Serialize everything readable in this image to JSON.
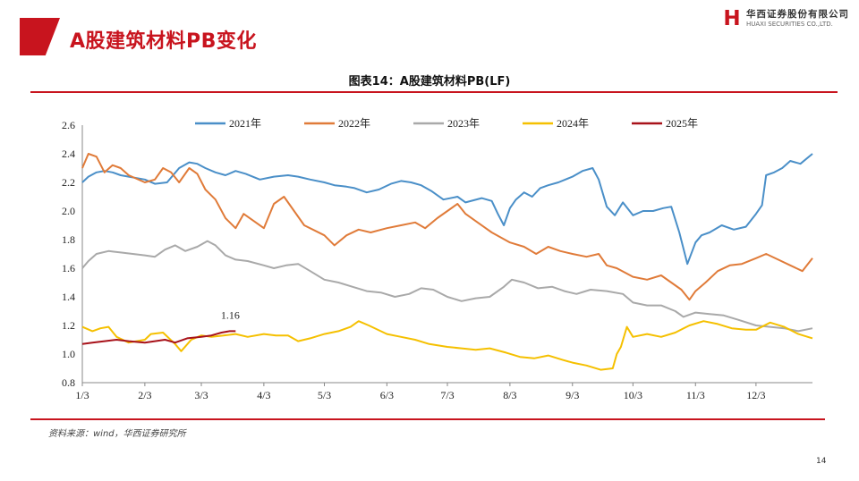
{
  "header": {
    "title": "A股建筑材料PB变化",
    "logo_cn": "华西证券股份有限公司",
    "logo_en": "HUAXI SECURITIES CO.,LTD."
  },
  "figure_title": "图表14：A股建筑材料PB(LF)",
  "source": "资料来源：wind，华西证券研究所",
  "page_number": "14",
  "colors": {
    "brand_red": "#c8141e",
    "s2021": "#4a8fc8",
    "s2022": "#e07b39",
    "s2023": "#a9a9a9",
    "s2024": "#f5c000",
    "s2025": "#a8121a"
  },
  "chart_data": {
    "type": "line",
    "title": "图表14：A股建筑材料PB(LF)",
    "xlabel": "",
    "ylabel": "",
    "ylim": [
      0.8,
      2.6
    ],
    "yticks": [
      "2.6",
      "2.4",
      "2.2",
      "2.0",
      "1.8",
      "1.6",
      "1.4",
      "1.2",
      "1.0",
      "0.8"
    ],
    "xticks": [
      "1/3",
      "2/3",
      "3/3",
      "4/3",
      "5/3",
      "6/3",
      "7/3",
      "8/3",
      "9/3",
      "10/3",
      "11/3",
      "12/3"
    ],
    "grid": false,
    "legend": "top",
    "annotation": {
      "text": "1.16",
      "series": "2025年",
      "x": "3/20",
      "y": 1.16
    },
    "series": [
      {
        "name": "2021年",
        "color": "#4a8fc8",
        "points": [
          [
            "1/3",
            2.2
          ],
          [
            "1/6",
            2.24
          ],
          [
            "1/10",
            2.27
          ],
          [
            "1/14",
            2.28
          ],
          [
            "1/18",
            2.27
          ],
          [
            "1/22",
            2.25
          ],
          [
            "1/26",
            2.24
          ],
          [
            "2/3",
            2.22
          ],
          [
            "2/8",
            2.19
          ],
          [
            "2/14",
            2.2
          ],
          [
            "2/20",
            2.3
          ],
          [
            "2/25",
            2.34
          ],
          [
            "3/1",
            2.33
          ],
          [
            "3/5",
            2.3
          ],
          [
            "3/10",
            2.27
          ],
          [
            "3/15",
            2.25
          ],
          [
            "3/20",
            2.28
          ],
          [
            "3/25",
            2.26
          ],
          [
            "4/1",
            2.22
          ],
          [
            "4/8",
            2.24
          ],
          [
            "4/15",
            2.25
          ],
          [
            "4/20",
            2.24
          ],
          [
            "4/26",
            2.22
          ],
          [
            "5/3",
            2.2
          ],
          [
            "5/8",
            2.18
          ],
          [
            "5/14",
            2.17
          ],
          [
            "5/18",
            2.16
          ],
          [
            "5/24",
            2.13
          ],
          [
            "5/30",
            2.15
          ],
          [
            "6/5",
            2.19
          ],
          [
            "6/10",
            2.21
          ],
          [
            "6/15",
            2.2
          ],
          [
            "6/20",
            2.18
          ],
          [
            "6/25",
            2.14
          ],
          [
            "7/1",
            2.08
          ],
          [
            "7/8",
            2.1
          ],
          [
            "7/12",
            2.06
          ],
          [
            "7/20",
            2.09
          ],
          [
            "7/25",
            2.07
          ],
          [
            "7/28",
            1.98
          ],
          [
            "7/31",
            1.9
          ],
          [
            "8/3",
            2.02
          ],
          [
            "8/6",
            2.08
          ],
          [
            "8/10",
            2.13
          ],
          [
            "8/14",
            2.1
          ],
          [
            "8/18",
            2.16
          ],
          [
            "8/22",
            2.18
          ],
          [
            "8/27",
            2.2
          ],
          [
            "9/3",
            2.24
          ],
          [
            "9/8",
            2.28
          ],
          [
            "9/13",
            2.3
          ],
          [
            "9/16",
            2.22
          ],
          [
            "9/20",
            2.03
          ],
          [
            "9/24",
            1.97
          ],
          [
            "9/28",
            2.06
          ],
          [
            "10/3",
            1.97
          ],
          [
            "10/8",
            2.0
          ],
          [
            "10/13",
            2.0
          ],
          [
            "10/18",
            2.02
          ],
          [
            "10/22",
            2.03
          ],
          [
            "10/26",
            1.85
          ],
          [
            "10/30",
            1.63
          ],
          [
            "11/3",
            1.78
          ],
          [
            "11/6",
            1.83
          ],
          [
            "11/10",
            1.85
          ],
          [
            "11/16",
            1.9
          ],
          [
            "11/22",
            1.87
          ],
          [
            "11/28",
            1.89
          ],
          [
            "12/3",
            1.98
          ],
          [
            "12/6",
            2.04
          ],
          [
            "12/8",
            2.25
          ],
          [
            "12/12",
            2.27
          ],
          [
            "12/16",
            2.3
          ],
          [
            "12/20",
            2.35
          ],
          [
            "12/25",
            2.33
          ],
          [
            "12/31",
            2.4
          ]
        ]
      },
      {
        "name": "2022年",
        "color": "#e07b39",
        "points": [
          [
            "1/3",
            2.3
          ],
          [
            "1/6",
            2.4
          ],
          [
            "1/10",
            2.38
          ],
          [
            "1/14",
            2.27
          ],
          [
            "1/18",
            2.32
          ],
          [
            "1/22",
            2.3
          ],
          [
            "1/26",
            2.25
          ],
          [
            "2/3",
            2.2
          ],
          [
            "2/8",
            2.22
          ],
          [
            "2/12",
            2.3
          ],
          [
            "2/16",
            2.27
          ],
          [
            "2/20",
            2.2
          ],
          [
            "2/25",
            2.3
          ],
          [
            "3/1",
            2.26
          ],
          [
            "3/5",
            2.15
          ],
          [
            "3/10",
            2.08
          ],
          [
            "3/15",
            1.95
          ],
          [
            "3/20",
            1.88
          ],
          [
            "3/24",
            1.98
          ],
          [
            "3/30",
            1.92
          ],
          [
            "4/3",
            1.88
          ],
          [
            "4/8",
            2.05
          ],
          [
            "4/13",
            2.1
          ],
          [
            "4/18",
            2.0
          ],
          [
            "4/23",
            1.9
          ],
          [
            "5/3",
            1.83
          ],
          [
            "5/8",
            1.76
          ],
          [
            "5/14",
            1.83
          ],
          [
            "5/20",
            1.87
          ],
          [
            "5/26",
            1.85
          ],
          [
            "6/3",
            1.88
          ],
          [
            "6/10",
            1.9
          ],
          [
            "6/17",
            1.92
          ],
          [
            "6/22",
            1.88
          ],
          [
            "6/28",
            1.95
          ],
          [
            "7/3",
            2.0
          ],
          [
            "7/8",
            2.05
          ],
          [
            "7/12",
            1.98
          ],
          [
            "7/18",
            1.92
          ],
          [
            "7/25",
            1.85
          ],
          [
            "8/3",
            1.78
          ],
          [
            "8/10",
            1.75
          ],
          [
            "8/16",
            1.7
          ],
          [
            "8/22",
            1.75
          ],
          [
            "8/28",
            1.72
          ],
          [
            "9/3",
            1.7
          ],
          [
            "9/10",
            1.68
          ],
          [
            "9/16",
            1.7
          ],
          [
            "9/20",
            1.62
          ],
          [
            "9/25",
            1.6
          ],
          [
            "10/3",
            1.54
          ],
          [
            "10/10",
            1.52
          ],
          [
            "10/17",
            1.55
          ],
          [
            "10/22",
            1.5
          ],
          [
            "10/27",
            1.45
          ],
          [
            "10/31",
            1.38
          ],
          [
            "11/3",
            1.44
          ],
          [
            "11/8",
            1.5
          ],
          [
            "11/14",
            1.58
          ],
          [
            "11/20",
            1.62
          ],
          [
            "11/26",
            1.63
          ],
          [
            "12/3",
            1.67
          ],
          [
            "12/8",
            1.7
          ],
          [
            "12/14",
            1.66
          ],
          [
            "12/20",
            1.62
          ],
          [
            "12/26",
            1.58
          ],
          [
            "12/31",
            1.67
          ]
        ]
      },
      {
        "name": "2023年",
        "color": "#a9a9a9",
        "points": [
          [
            "1/3",
            1.6
          ],
          [
            "1/6",
            1.65
          ],
          [
            "1/10",
            1.7
          ],
          [
            "1/16",
            1.72
          ],
          [
            "1/22",
            1.71
          ],
          [
            "1/28",
            1.7
          ],
          [
            "2/3",
            1.69
          ],
          [
            "2/8",
            1.68
          ],
          [
            "2/13",
            1.73
          ],
          [
            "2/18",
            1.76
          ],
          [
            "2/23",
            1.72
          ],
          [
            "3/1",
            1.75
          ],
          [
            "3/6",
            1.79
          ],
          [
            "3/10",
            1.76
          ],
          [
            "3/15",
            1.69
          ],
          [
            "3/20",
            1.66
          ],
          [
            "3/26",
            1.65
          ],
          [
            "4/3",
            1.62
          ],
          [
            "4/8",
            1.6
          ],
          [
            "4/14",
            1.62
          ],
          [
            "4/20",
            1.63
          ],
          [
            "4/26",
            1.58
          ],
          [
            "5/3",
            1.52
          ],
          [
            "5/10",
            1.5
          ],
          [
            "5/17",
            1.47
          ],
          [
            "5/24",
            1.44
          ],
          [
            "5/31",
            1.43
          ],
          [
            "6/7",
            1.4
          ],
          [
            "6/14",
            1.42
          ],
          [
            "6/20",
            1.46
          ],
          [
            "6/26",
            1.45
          ],
          [
            "7/3",
            1.4
          ],
          [
            "7/10",
            1.37
          ],
          [
            "7/17",
            1.39
          ],
          [
            "7/24",
            1.4
          ],
          [
            "7/31",
            1.47
          ],
          [
            "8/4",
            1.52
          ],
          [
            "8/10",
            1.5
          ],
          [
            "8/17",
            1.46
          ],
          [
            "8/24",
            1.47
          ],
          [
            "8/30",
            1.44
          ],
          [
            "9/5",
            1.42
          ],
          [
            "9/12",
            1.45
          ],
          [
            "9/20",
            1.44
          ],
          [
            "9/28",
            1.42
          ],
          [
            "10/3",
            1.36
          ],
          [
            "10/10",
            1.34
          ],
          [
            "10/17",
            1.34
          ],
          [
            "10/24",
            1.3
          ],
          [
            "10/28",
            1.26
          ],
          [
            "11/3",
            1.29
          ],
          [
            "11/10",
            1.28
          ],
          [
            "11/17",
            1.27
          ],
          [
            "11/24",
            1.24
          ],
          [
            "12/3",
            1.2
          ],
          [
            "12/10",
            1.19
          ],
          [
            "12/17",
            1.18
          ],
          [
            "12/24",
            1.16
          ],
          [
            "12/31",
            1.18
          ]
        ]
      },
      {
        "name": "2024年",
        "color": "#f5c000",
        "points": [
          [
            "1/3",
            1.19
          ],
          [
            "1/8",
            1.16
          ],
          [
            "1/12",
            1.18
          ],
          [
            "1/16",
            1.19
          ],
          [
            "1/20",
            1.12
          ],
          [
            "1/26",
            1.08
          ],
          [
            "2/3",
            1.1
          ],
          [
            "2/6",
            1.14
          ],
          [
            "2/12",
            1.15
          ],
          [
            "2/18",
            1.07
          ],
          [
            "2/21",
            1.02
          ],
          [
            "2/26",
            1.1
          ],
          [
            "3/3",
            1.13
          ],
          [
            "3/8",
            1.12
          ],
          [
            "3/14",
            1.13
          ],
          [
            "3/20",
            1.14
          ],
          [
            "3/26",
            1.12
          ],
          [
            "4/3",
            1.14
          ],
          [
            "4/9",
            1.13
          ],
          [
            "4/15",
            1.13
          ],
          [
            "4/20",
            1.09
          ],
          [
            "4/26",
            1.11
          ],
          [
            "5/3",
            1.14
          ],
          [
            "5/10",
            1.16
          ],
          [
            "5/16",
            1.19
          ],
          [
            "5/20",
            1.23
          ],
          [
            "5/25",
            1.2
          ],
          [
            "6/3",
            1.14
          ],
          [
            "6/10",
            1.12
          ],
          [
            "6/17",
            1.1
          ],
          [
            "6/24",
            1.07
          ],
          [
            "7/3",
            1.05
          ],
          [
            "7/10",
            1.04
          ],
          [
            "7/17",
            1.03
          ],
          [
            "7/24",
            1.04
          ],
          [
            "8/1",
            1.01
          ],
          [
            "8/8",
            0.98
          ],
          [
            "8/15",
            0.97
          ],
          [
            "8/22",
            0.99
          ],
          [
            "8/29",
            0.96
          ],
          [
            "9/3",
            0.94
          ],
          [
            "9/10",
            0.92
          ],
          [
            "9/17",
            0.89
          ],
          [
            "9/23",
            0.9
          ],
          [
            "9/25",
            1.0
          ],
          [
            "9/27",
            1.05
          ],
          [
            "9/30",
            1.19
          ],
          [
            "10/3",
            1.12
          ],
          [
            "10/10",
            1.14
          ],
          [
            "10/17",
            1.12
          ],
          [
            "10/24",
            1.15
          ],
          [
            "10/31",
            1.2
          ],
          [
            "11/7",
            1.23
          ],
          [
            "11/14",
            1.21
          ],
          [
            "11/21",
            1.18
          ],
          [
            "11/28",
            1.17
          ],
          [
            "12/3",
            1.17
          ],
          [
            "12/10",
            1.22
          ],
          [
            "12/17",
            1.19
          ],
          [
            "12/24",
            1.14
          ],
          [
            "12/31",
            1.11
          ]
        ]
      },
      {
        "name": "2025年",
        "color": "#a8121a",
        "points": [
          [
            "1/3",
            1.07
          ],
          [
            "1/8",
            1.08
          ],
          [
            "1/14",
            1.09
          ],
          [
            "1/20",
            1.1
          ],
          [
            "1/26",
            1.09
          ],
          [
            "2/3",
            1.08
          ],
          [
            "2/8",
            1.09
          ],
          [
            "2/13",
            1.1
          ],
          [
            "2/18",
            1.08
          ],
          [
            "2/24",
            1.11
          ],
          [
            "3/3",
            1.12
          ],
          [
            "3/8",
            1.13
          ],
          [
            "3/13",
            1.15
          ],
          [
            "3/17",
            1.16
          ],
          [
            "3/20",
            1.16
          ]
        ]
      }
    ]
  }
}
